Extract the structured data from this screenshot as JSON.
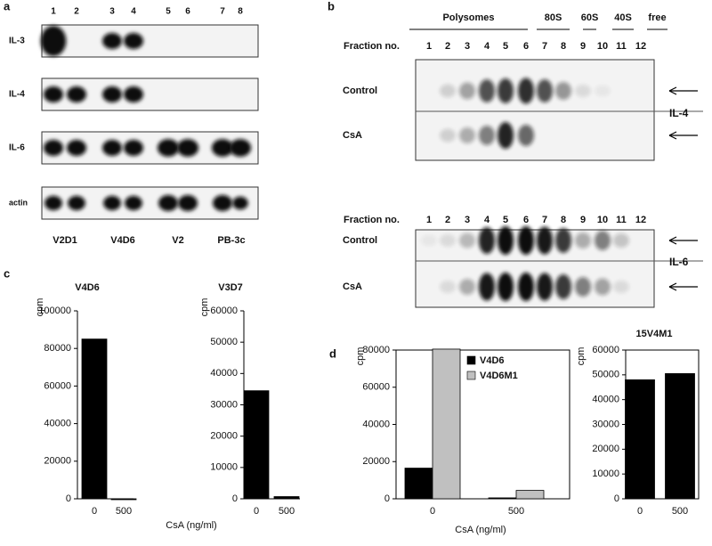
{
  "panel_a": {
    "label": "a",
    "lanes": [
      "1",
      "2",
      "3",
      "4",
      "5",
      "6",
      "7",
      "8"
    ],
    "rows": [
      "IL-3",
      "IL-4",
      "IL-6",
      "actin"
    ],
    "groups": [
      "V2D1",
      "V4D6",
      "V2",
      "PB-3c"
    ]
  },
  "panel_b": {
    "label": "b",
    "fraction_header": [
      "Polysomes",
      "80S",
      "60S",
      "40S",
      "free"
    ],
    "fraction_label": "Fraction no.",
    "fractions": [
      "1",
      "2",
      "3",
      "4",
      "5",
      "6",
      "7",
      "8",
      "9",
      "10",
      "11",
      "12"
    ],
    "conditions": [
      "Control",
      "CsA"
    ],
    "genes": [
      "IL-4",
      "IL-6"
    ]
  },
  "panel_c": {
    "label": "c"
  },
  "panel_d": {
    "label": "d"
  },
  "chart_data": [
    {
      "type": "bar",
      "title": "V4D6",
      "y_label": "cpm",
      "x_label": "CsA (ng/ml)",
      "categories": [
        "0",
        "500"
      ],
      "values": [
        85000,
        0
      ],
      "color": "#000000",
      "ylim": [
        0,
        100000
      ],
      "yticks": [
        0,
        20000,
        40000,
        60000,
        80000,
        100000
      ]
    },
    {
      "type": "bar",
      "title": "V3D7",
      "y_label": "cpm",
      "categories": [
        "0",
        "500"
      ],
      "values": [
        34500,
        700
      ],
      "color": "#000000",
      "ylim": [
        0,
        60000
      ],
      "yticks": [
        0,
        10000,
        20000,
        30000,
        40000,
        50000,
        60000
      ]
    },
    {
      "type": "bar",
      "y_label": "cpm",
      "x_label": "CsA  (ng/ml)",
      "categories": [
        "0",
        "500"
      ],
      "series": [
        {
          "name": "V4D6",
          "color": "#000000",
          "values": [
            16500,
            500
          ]
        },
        {
          "name": "V4D6M1",
          "color": "#c0c0c0",
          "values": [
            80500,
            4500
          ]
        }
      ],
      "ylim": [
        0,
        80000
      ],
      "yticks": [
        0,
        20000,
        40000,
        60000,
        80000
      ],
      "legend": "upper right"
    },
    {
      "type": "bar",
      "title": "15V4M1",
      "y_label": "cpm",
      "categories": [
        "0",
        "500"
      ],
      "values": [
        48000,
        50500
      ],
      "color": "#000000",
      "ylim": [
        0,
        60000
      ],
      "yticks": [
        0,
        10000,
        20000,
        30000,
        40000,
        50000,
        60000
      ]
    }
  ]
}
